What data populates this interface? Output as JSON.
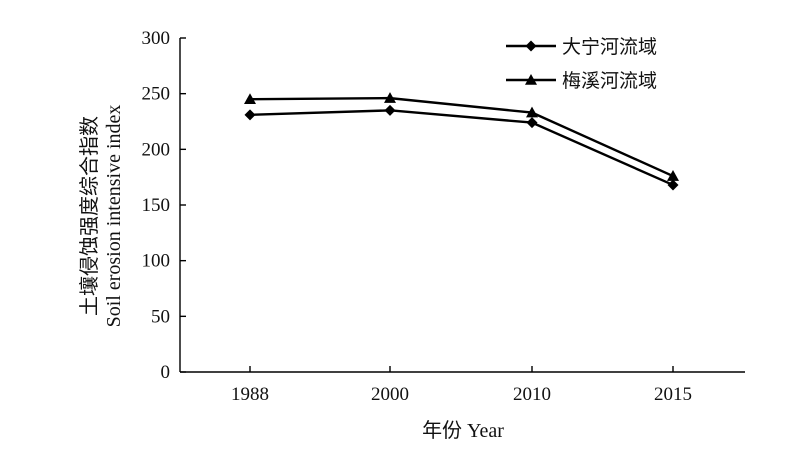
{
  "chart_data": {
    "type": "line",
    "categories": [
      "1988",
      "2000",
      "2010",
      "2015"
    ],
    "series": [
      {
        "name": "大宁河流域",
        "values": [
          231,
          235,
          224,
          168
        ],
        "marker": "diamond"
      },
      {
        "name": "梅溪河流域",
        "values": [
          245,
          246,
          233,
          176
        ],
        "marker": "triangle"
      }
    ],
    "xlabel": "年份 Year",
    "ylabel_zh": "土壤侵蚀强度综合指数",
    "ylabel_en": "Soil erosion intensive index",
    "ylim": [
      0,
      300
    ],
    "yticks": [
      "0",
      "50",
      "100",
      "150",
      "200",
      "250",
      "300"
    ],
    "grid": false,
    "legend_position": "top-right",
    "colors": {
      "series": "#000000",
      "axis": "#000000"
    }
  }
}
